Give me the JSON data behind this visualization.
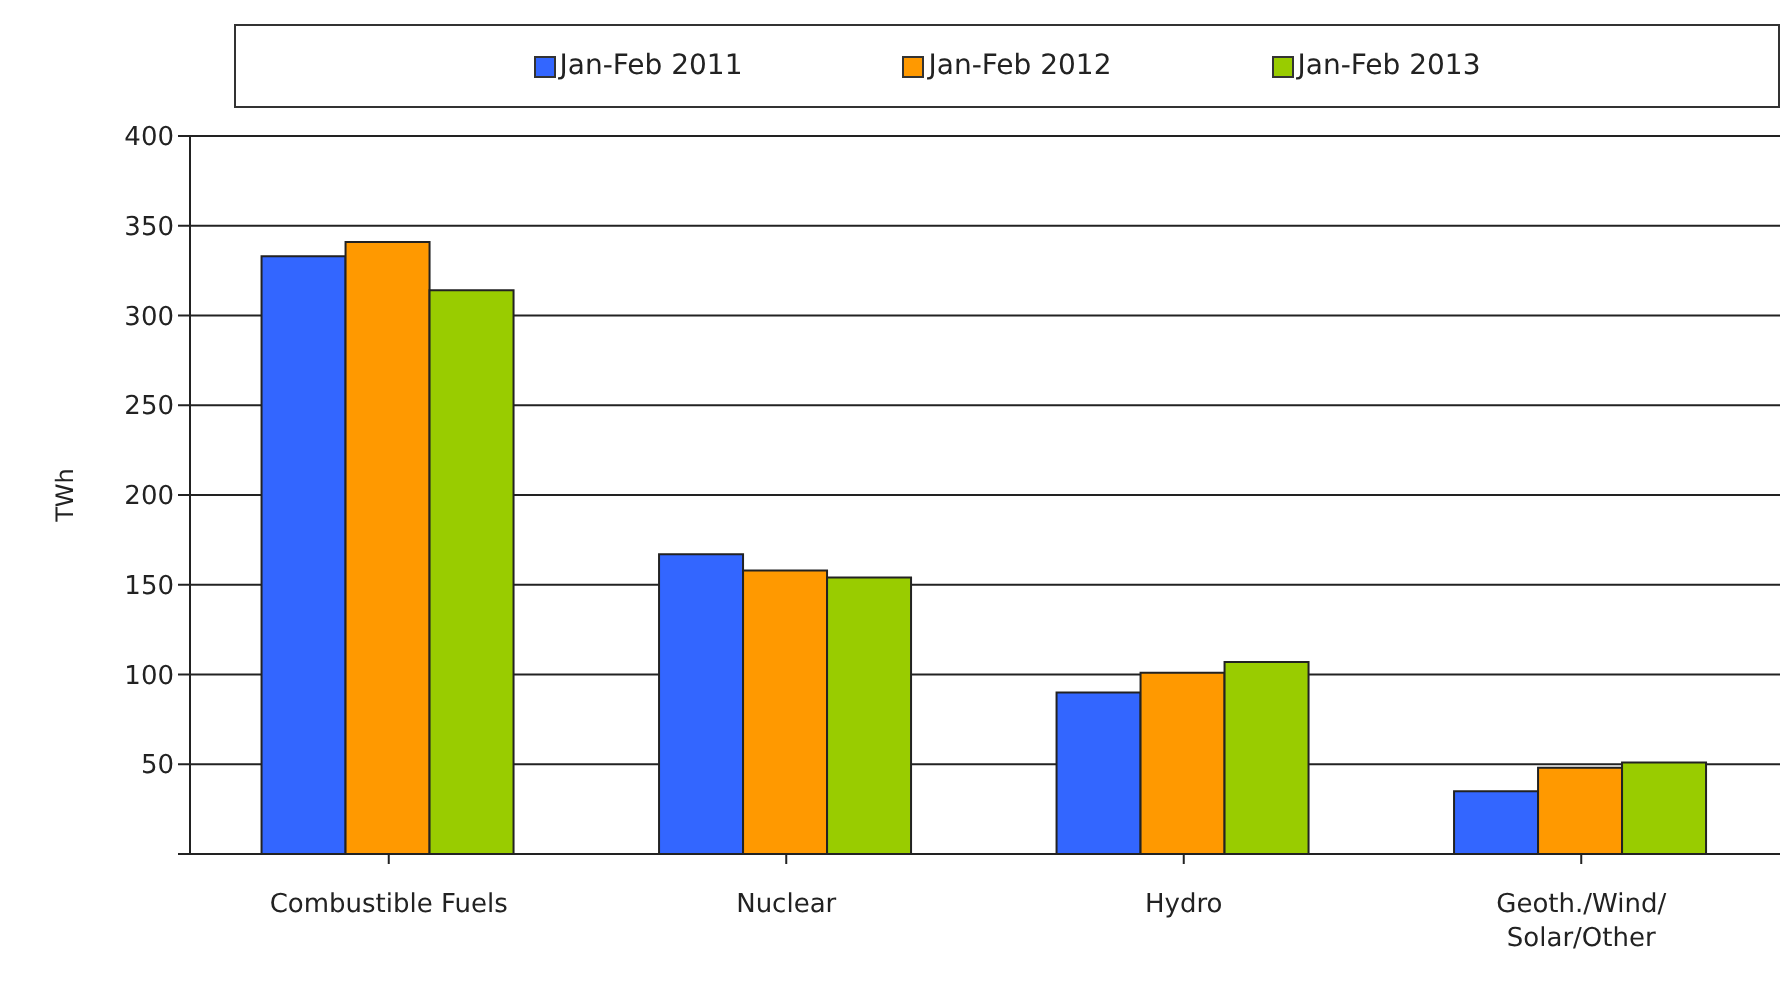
{
  "chart_data": {
    "type": "bar",
    "ylabel": "TWh",
    "categories": [
      "Combustible  Fuels",
      "Nuclear",
      "Hydro",
      "Geoth./Wind/Solar/Other"
    ],
    "series": [
      {
        "name": "Jan-Feb 2011",
        "color": "#3366ff",
        "values": [
          333,
          167,
          90,
          35
        ]
      },
      {
        "name": "Jan-Feb 2012",
        "color": "#ff9900",
        "values": [
          341,
          158,
          101,
          48
        ]
      },
      {
        "name": "Jan-Feb 2013",
        "color": "#99cc00",
        "values": [
          314,
          154,
          107,
          51
        ]
      }
    ],
    "ylim": [
      0,
      400
    ],
    "yticks": [
      {
        "value": 0,
        "label": null
      },
      50,
      100,
      150,
      200,
      250,
      300,
      350,
      400
    ],
    "grid": "y",
    "legend": "top"
  }
}
